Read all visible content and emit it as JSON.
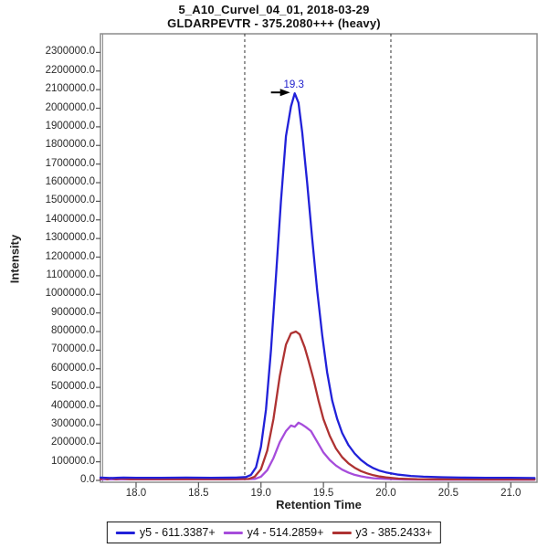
{
  "title": {
    "line1": "5_A10_Curvel_04_01, 2018-03-29",
    "line2": "GLDARPEVTR - 375.2080+++ (heavy)"
  },
  "axes": {
    "x_label": "Retention Time",
    "y_label": "Intensity",
    "x_tick_values": [
      18.0,
      18.5,
      19.0,
      19.5,
      20.0,
      20.5,
      21.0
    ],
    "x_tick_labels": [
      "18.0",
      "18.5",
      "19.0",
      "19.5",
      "20.0",
      "20.5",
      "21.0"
    ],
    "y_tick_values": [
      0,
      100000,
      200000,
      300000,
      400000,
      500000,
      600000,
      700000,
      800000,
      900000,
      1000000,
      1100000,
      1200000,
      1300000,
      1400000,
      1500000,
      1600000,
      1700000,
      1800000,
      1900000,
      2000000,
      2100000,
      2200000,
      2300000
    ],
    "y_tick_labels": [
      "0.0",
      "100000.0",
      "200000.0",
      "300000.0",
      "400000.0",
      "500000.0",
      "600000.0",
      "700000.0",
      "800000.0",
      "900000.0",
      "1000000.0",
      "1100000.0",
      "1200000.0",
      "1300000.0",
      "1400000.0",
      "1500000.0",
      "1600000.0",
      "1700000.0",
      "1800000.0",
      "1900000.0",
      "2000000.0",
      "2100000.0",
      "2200000.0",
      "2300000.0"
    ]
  },
  "colors": {
    "frame": "#8c8c8c",
    "tick": "#555555",
    "boundary_line": "#333333",
    "annotation_text": "#2020cc",
    "annotation_arrow": "#000000"
  },
  "chart_data": {
    "type": "line",
    "title": "5_A10_Curvel_04_01, 2018-03-29 / GLDARPEVTR - 375.2080+++ (heavy)",
    "xlabel": "Retention Time",
    "ylabel": "Intensity",
    "xlim": [
      17.715,
      21.21
    ],
    "ylim": [
      0,
      2400000
    ],
    "grid": false,
    "legend_position": "bottom",
    "peak_annotation": {
      "text": "19.3",
      "x": 19.27,
      "y": 2080000
    },
    "peak_boundaries": [
      18.87,
      20.04
    ],
    "series": [
      {
        "name": "y5 - 611.3387+",
        "color": "#2121d9",
        "points": [
          [
            17.715,
            15000
          ],
          [
            17.8,
            13000
          ],
          [
            17.9,
            15000
          ],
          [
            18.0,
            14000
          ],
          [
            18.2,
            14000
          ],
          [
            18.4,
            15000
          ],
          [
            18.6,
            14000
          ],
          [
            18.8,
            15000
          ],
          [
            18.88,
            18000
          ],
          [
            18.92,
            30000
          ],
          [
            18.96,
            70000
          ],
          [
            19.0,
            180000
          ],
          [
            19.04,
            380000
          ],
          [
            19.08,
            700000
          ],
          [
            19.12,
            1100000
          ],
          [
            19.16,
            1500000
          ],
          [
            19.2,
            1850000
          ],
          [
            19.24,
            2010000
          ],
          [
            19.27,
            2080000
          ],
          [
            19.3,
            2030000
          ],
          [
            19.33,
            1870000
          ],
          [
            19.37,
            1600000
          ],
          [
            19.41,
            1300000
          ],
          [
            19.45,
            1020000
          ],
          [
            19.49,
            780000
          ],
          [
            19.53,
            580000
          ],
          [
            19.57,
            430000
          ],
          [
            19.61,
            330000
          ],
          [
            19.65,
            255000
          ],
          [
            19.7,
            190000
          ],
          [
            19.75,
            145000
          ],
          [
            19.8,
            110000
          ],
          [
            19.85,
            85000
          ],
          [
            19.9,
            66000
          ],
          [
            19.95,
            52000
          ],
          [
            20.0,
            43000
          ],
          [
            20.1,
            31000
          ],
          [
            20.2,
            24000
          ],
          [
            20.3,
            20000
          ],
          [
            20.45,
            17000
          ],
          [
            20.6,
            15000
          ],
          [
            20.8,
            14000
          ],
          [
            21.0,
            14000
          ],
          [
            21.19,
            13000
          ]
        ]
      },
      {
        "name": "y4 - 514.2859+",
        "color": "#a64cdb",
        "points": [
          [
            17.715,
            6000
          ],
          [
            18.0,
            6000
          ],
          [
            18.4,
            6000
          ],
          [
            18.8,
            6000
          ],
          [
            18.95,
            8000
          ],
          [
            19.0,
            20000
          ],
          [
            19.05,
            55000
          ],
          [
            19.1,
            120000
          ],
          [
            19.15,
            205000
          ],
          [
            19.2,
            265000
          ],
          [
            19.24,
            295000
          ],
          [
            19.27,
            288000
          ],
          [
            19.3,
            310000
          ],
          [
            19.33,
            300000
          ],
          [
            19.36,
            286000
          ],
          [
            19.4,
            265000
          ],
          [
            19.43,
            230000
          ],
          [
            19.47,
            185000
          ],
          [
            19.5,
            150000
          ],
          [
            19.55,
            110000
          ],
          [
            19.6,
            80000
          ],
          [
            19.65,
            58000
          ],
          [
            19.7,
            42000
          ],
          [
            19.75,
            30000
          ],
          [
            19.8,
            22000
          ],
          [
            19.85,
            16000
          ],
          [
            19.9,
            12000
          ],
          [
            20.0,
            8000
          ],
          [
            20.15,
            5000
          ],
          [
            20.4,
            4000
          ],
          [
            20.8,
            4000
          ],
          [
            21.19,
            4000
          ]
        ]
      },
      {
        "name": "y3 - 385.2433+",
        "color": "#ae3232",
        "points": [
          [
            17.715,
            8000
          ],
          [
            17.74,
            14000
          ],
          [
            17.77,
            6000
          ],
          [
            17.8,
            13000
          ],
          [
            17.84,
            7000
          ],
          [
            17.88,
            11000
          ],
          [
            17.95,
            7000
          ],
          [
            18.1,
            7000
          ],
          [
            18.3,
            7000
          ],
          [
            18.5,
            7000
          ],
          [
            18.7,
            7000
          ],
          [
            18.9,
            8000
          ],
          [
            18.95,
            20000
          ],
          [
            19.0,
            60000
          ],
          [
            19.05,
            160000
          ],
          [
            19.1,
            330000
          ],
          [
            19.15,
            560000
          ],
          [
            19.2,
            730000
          ],
          [
            19.24,
            790000
          ],
          [
            19.28,
            800000
          ],
          [
            19.31,
            785000
          ],
          [
            19.35,
            715000
          ],
          [
            19.38,
            645000
          ],
          [
            19.42,
            545000
          ],
          [
            19.46,
            430000
          ],
          [
            19.5,
            330000
          ],
          [
            19.55,
            240000
          ],
          [
            19.6,
            172000
          ],
          [
            19.65,
            125000
          ],
          [
            19.7,
            92000
          ],
          [
            19.75,
            68000
          ],
          [
            19.8,
            50000
          ],
          [
            19.85,
            38000
          ],
          [
            19.9,
            28000
          ],
          [
            19.95,
            21000
          ],
          [
            20.0,
            16000
          ],
          [
            20.1,
            10000
          ],
          [
            20.25,
            7000
          ],
          [
            20.5,
            6000
          ],
          [
            20.8,
            5000
          ],
          [
            21.19,
            5000
          ]
        ]
      }
    ]
  },
  "legend": {
    "items": [
      {
        "label": "y5 - 611.3387+",
        "color": "#2121d9"
      },
      {
        "label": "y4 - 514.2859+",
        "color": "#a64cdb"
      },
      {
        "label": "y3 - 385.2433+",
        "color": "#ae3232"
      }
    ]
  }
}
